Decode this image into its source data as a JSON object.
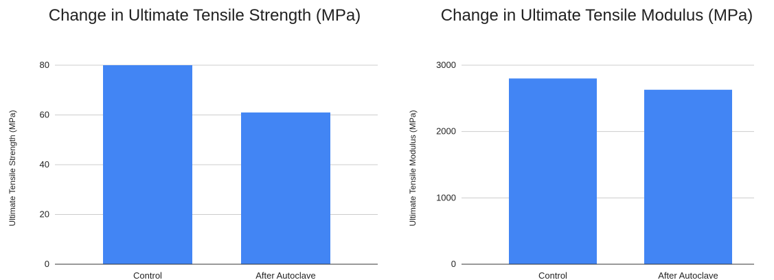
{
  "colors": {
    "bar": "#4285f4",
    "grid": "#cccccc",
    "axis": "#333333"
  },
  "chart_data": [
    {
      "type": "bar",
      "title": "Change in Ultimate Tensile Strength (MPa)",
      "xlabel": "",
      "ylabel": "Ultimate Tensile Strength (MPa)",
      "categories": [
        "Control",
        "After Autoclave"
      ],
      "values": [
        80,
        61
      ],
      "ylim": [
        0,
        80
      ],
      "yticks": [
        0,
        20,
        40,
        60,
        80
      ],
      "grid": true,
      "legend": "none"
    },
    {
      "type": "bar",
      "title": "Change in Ultimate Tensile Modulus (MPa)",
      "xlabel": "",
      "ylabel": "Ultimate Tensile Modulus (MPa)",
      "categories": [
        "Control",
        "After Autoclave"
      ],
      "values": [
        2800,
        2630
      ],
      "ylim": [
        0,
        3000
      ],
      "yticks": [
        0,
        1000,
        2000,
        3000
      ],
      "grid": true,
      "legend": "none"
    }
  ]
}
